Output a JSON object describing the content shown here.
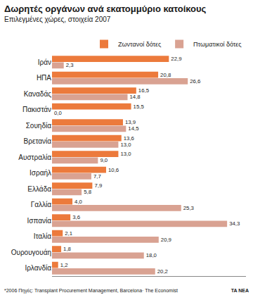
{
  "chart_data": {
    "type": "bar",
    "orientation": "horizontal",
    "title": "Δωρητές οργάνων ανά εκατομμύριο κατοίκους",
    "subtitle": "Επιλεγμένες χώρες, στοιχεία 2007",
    "categories": [
      "Ιράν",
      "ΗΠΑ",
      "Καναδάς",
      "Πακιστάν",
      "Σουηδία",
      "Βρετανία",
      "Αυστραλία",
      "Ισραήλ",
      "Ελλάδα",
      "Γαλλία",
      "Ισπανία",
      "Ιταλία",
      "Ουρουγουάη",
      "Ιρλανδία"
    ],
    "series": [
      {
        "name": "Ζωντανοί δότες",
        "color": "#ec7a3c",
        "values": [
          22.9,
          20.8,
          16.5,
          15.5,
          13.9,
          13.6,
          13.0,
          10.6,
          7.9,
          4.0,
          3.6,
          2.1,
          1.8,
          1.2
        ],
        "value_labels": [
          "22,9",
          "20,8",
          "16,5",
          "15,5",
          "13,9",
          "13,6",
          "13,0",
          "10,6",
          "7,9",
          "4,0",
          "3,6",
          "2,1",
          "1,8",
          "1,2"
        ]
      },
      {
        "name": "Πτωματικοί δότες",
        "color": "#d9a292",
        "values": [
          2.3,
          26.6,
          14.8,
          0.0,
          14.5,
          13.0,
          9.0,
          7.7,
          5.8,
          25.3,
          34.3,
          20.9,
          18.0,
          20.2
        ],
        "value_labels": [
          "2,3",
          "26,6",
          "14,8",
          "0,0",
          "14,5",
          "13,0",
          "9,0",
          "7,7",
          "5,8",
          "25,3",
          "34,3",
          "20,9",
          "18,0",
          "20,2"
        ]
      }
    ],
    "xlim": [
      0,
      38
    ],
    "xticks": [],
    "grid": false,
    "data_labels": true,
    "tick_labels": "y",
    "legend": "top right",
    "annotations": [
      "*2006 Πηγές: Transplant Procurement Management, Barcelona· The Economist",
      "TA NEA"
    ]
  }
}
